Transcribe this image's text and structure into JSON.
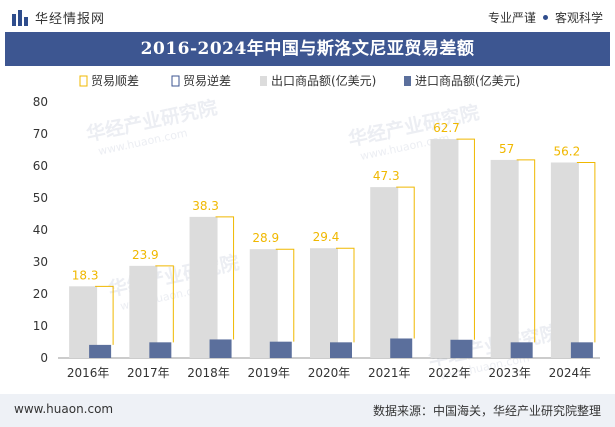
{
  "header": {
    "brand": "华经情报网",
    "slogan_left": "专业严谨",
    "slogan_right": "客观科学"
  },
  "watermark": {
    "cn": "华经产业研究院",
    "url": "www.huaon.com"
  },
  "footer": {
    "site": "www.huaon.com",
    "source": "数据来源：中国海关，华经产业研究院整理"
  },
  "colors": {
    "title_bar": "#3d5691",
    "export_bar": "#dcdcdc",
    "import_bar": "#5b6f9c",
    "surplus_line": "#f0b800",
    "deficit_line": "#3d5691",
    "label": "#f0b800"
  },
  "chart_data": {
    "type": "bar",
    "title": "2016-2024年中国与斯洛文尼亚贸易差额",
    "categories": [
      "2016年",
      "2017年",
      "2018年",
      "2019年",
      "2020年",
      "2021年",
      "2022年",
      "2023年",
      "2024年"
    ],
    "series": [
      {
        "name": "贸易顺差",
        "values": [
          18.3,
          23.9,
          38.3,
          28.9,
          29.4,
          47.3,
          62.7,
          57,
          56.2
        ]
      },
      {
        "name": "贸易逆差",
        "values": [
          0,
          0,
          0,
          0,
          0,
          0,
          0,
          0,
          0
        ]
      },
      {
        "name": "出口商品额(亿美元)",
        "values": [
          22.4,
          28.8,
          44.1,
          34.0,
          34.3,
          53.4,
          68.4,
          61.9,
          61.1
        ]
      },
      {
        "name": "进口商品额(亿美元)",
        "values": [
          4.1,
          4.9,
          5.8,
          5.1,
          4.9,
          6.1,
          5.7,
          4.9,
          4.9
        ]
      }
    ],
    "ylim": [
      0,
      80
    ],
    "yticks": [
      0,
      10,
      20,
      30,
      40,
      50,
      60,
      70,
      80
    ],
    "legend_position": "top",
    "grid": false
  }
}
